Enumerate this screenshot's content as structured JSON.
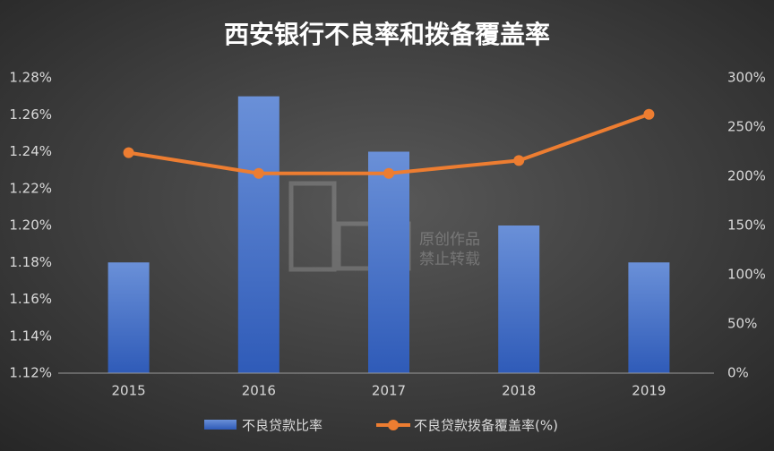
{
  "chart_data": {
    "type": "bar_line",
    "title": "西安银行不良率和拨备覆盖率",
    "categories": [
      "2015",
      "2016",
      "2017",
      "2018",
      "2019"
    ],
    "series": [
      {
        "name": "不良贷款比率",
        "type": "bar",
        "color": "#4a78d0",
        "values": [
          1.18,
          1.27,
          1.24,
          1.2,
          1.18
        ]
      },
      {
        "name": "不良贷款拨备覆盖率(%)",
        "type": "line",
        "axis": "y2",
        "color": "#ed7d31",
        "values": [
          224,
          203,
          203,
          216,
          263
        ]
      }
    ],
    "ylim": [
      1.12,
      1.28
    ],
    "yticks": [
      {
        "value": 1.12,
        "label": "1.12%"
      },
      {
        "value": 1.14,
        "label": "1.14%"
      },
      {
        "value": 1.16,
        "label": "1.16%"
      },
      {
        "value": 1.18,
        "label": "1.18%"
      },
      {
        "value": 1.2,
        "label": "1.20%"
      },
      {
        "value": 1.22,
        "label": "1.22%"
      },
      {
        "value": 1.24,
        "label": "1.24%"
      },
      {
        "value": 1.26,
        "label": "1.26%"
      },
      {
        "value": 1.28,
        "label": "1.28%"
      }
    ],
    "y2lim": [
      0,
      300
    ],
    "y2ticks": [
      {
        "value": 0,
        "label": "0%"
      },
      {
        "value": 50,
        "label": "50%"
      },
      {
        "value": 100,
        "label": "100%"
      },
      {
        "value": 150,
        "label": "150%"
      },
      {
        "value": 200,
        "label": "200%"
      },
      {
        "value": 250,
        "label": "250%"
      },
      {
        "value": 300,
        "label": "300%"
      }
    ],
    "grid": false,
    "legend": "bottom",
    "watermark": [
      "原创作品",
      "禁止转载"
    ]
  }
}
